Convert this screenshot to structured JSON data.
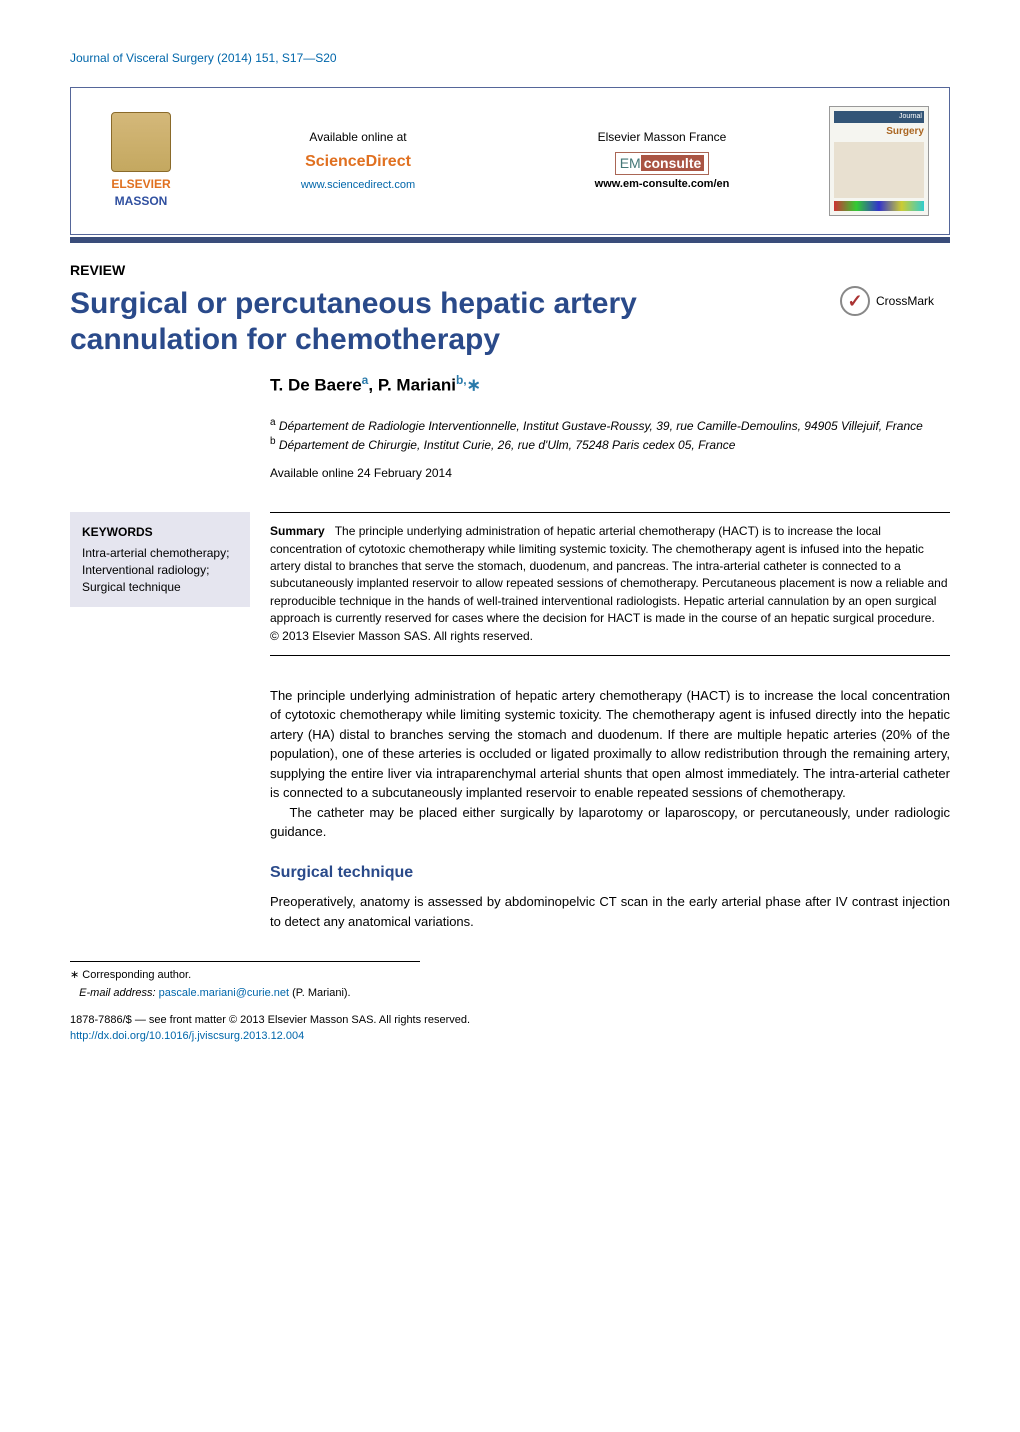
{
  "colors": {
    "link": "#0066aa",
    "title": "#2a4a8a",
    "bar": "#3a4d7a",
    "orange": "#e07020",
    "kw_bg": "#e5e5ef",
    "text": "#000000",
    "background": "#ffffff"
  },
  "journal_ref": "Journal of Visceral Surgery (2014) 151, S17—S20",
  "top_box": {
    "publisher": {
      "line1": "ELSEVIER",
      "line2": "MASSON"
    },
    "available": {
      "label": "Available online at",
      "brand": "ScienceDirect",
      "url": "www.sciencedirect.com"
    },
    "emf": {
      "label": "Elsevier Masson France",
      "logo_em": "EM",
      "logo_consulte": "consulte",
      "url": "www.em-consulte.com/en"
    },
    "cover": {
      "pretitle": "Journal",
      "title": "Surgery"
    }
  },
  "label": "REVIEW",
  "title": "Surgical or percutaneous hepatic artery cannulation for chemotherapy",
  "crossmark": {
    "glyph": "✓",
    "label": "CrossMark"
  },
  "authors": {
    "a1_name": "T. De Baere",
    "a1_sup": "a",
    "a2_name": "P. Mariani",
    "a2_sup": "b,",
    "a2_star": "∗"
  },
  "affiliations": {
    "a_sup": "a",
    "a_text": "Département de Radiologie Interventionnelle, Institut Gustave-Roussy, 39, rue Camille-Demoulins, 94905 Villejuif, France",
    "b_sup": "b",
    "b_text": "Département de Chirurgie, Institut Curie, 26, rue d'Ulm, 75248 Paris cedex 05, France"
  },
  "available_online": "Available online 24 February 2014",
  "keywords": {
    "heading": "KEYWORDS",
    "items": "Intra-arterial chemotherapy; Interventional radiology; Surgical technique"
  },
  "summary": {
    "heading": "Summary",
    "text": "The principle underlying administration of hepatic arterial chemotherapy (HACT) is to increase the local concentration of cytotoxic chemotherapy while limiting systemic toxicity. The chemotherapy agent is infused into the hepatic artery distal to branches that serve the stomach, duodenum, and pancreas. The intra-arterial catheter is connected to a subcutaneously implanted reservoir to allow repeated sessions of chemotherapy. Percutaneous placement is now a reliable and reproducible technique in the hands of well-trained interventional radiologists. Hepatic arterial cannulation by an open surgical approach is currently reserved for cases where the decision for HACT is made in the course of an hepatic surgical procedure.",
    "copyright": "© 2013 Elsevier Masson SAS. All rights reserved."
  },
  "body": {
    "p1": "The principle underlying administration of hepatic artery chemotherapy (HACT) is to increase the local concentration of cytotoxic chemotherapy while limiting systemic toxicity. The chemotherapy agent is infused directly into the hepatic artery (HA) distal to branches serving the stomach and duodenum. If there are multiple hepatic arteries (20% of the population), one of these arteries is occluded or ligated proximally to allow redistribution through the remaining artery, supplying the entire liver via intraparenchymal arterial shunts that open almost immediately. The intra-arterial catheter is connected to a subcutaneously implanted reservoir to enable repeated sessions of chemotherapy.",
    "p2": "The catheter may be placed either surgically by laparotomy or laparoscopy, or percutaneously, under radiologic guidance.",
    "sec1_heading": "Surgical technique",
    "sec1_p1": "Preoperatively, anatomy is assessed by abdominopelvic CT scan in the early arterial phase after IV contrast injection to detect any anatomical variations."
  },
  "footnotes": {
    "star": "∗",
    "corresponding": "Corresponding author.",
    "email_label": "E-mail address:",
    "email": "pascale.mariani@curie.net",
    "email_who": "(P. Mariani)."
  },
  "footer": {
    "issn_line": "1878-7886/$ — see front matter © 2013 Elsevier Masson SAS. All rights reserved.",
    "doi": "http://dx.doi.org/10.1016/j.jviscsurg.2013.12.004"
  }
}
